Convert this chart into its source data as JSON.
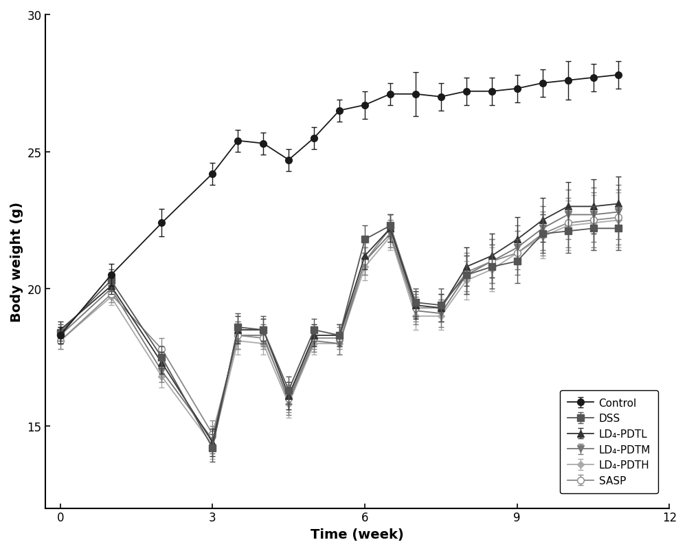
{
  "x": [
    0,
    1,
    2,
    3,
    3.5,
    4,
    4.5,
    5,
    5.5,
    6,
    6.5,
    7,
    7.5,
    8,
    8.5,
    9,
    9.5,
    10,
    10.5,
    11
  ],
  "series": {
    "Control": {
      "y": [
        18.3,
        20.5,
        22.4,
        24.2,
        25.4,
        25.3,
        24.7,
        25.5,
        26.5,
        26.7,
        27.1,
        27.1,
        27.0,
        27.2,
        27.2,
        27.3,
        27.5,
        27.6,
        27.7,
        27.8
      ],
      "yerr": [
        0.3,
        0.4,
        0.5,
        0.4,
        0.4,
        0.4,
        0.4,
        0.4,
        0.4,
        0.5,
        0.4,
        0.8,
        0.5,
        0.5,
        0.5,
        0.5,
        0.5,
        0.7,
        0.5,
        0.5
      ],
      "color": "#1a1a1a",
      "marker": "o",
      "markersize": 7,
      "zorder": 5,
      "linestyle": "-",
      "markerfacecolor": "#1a1a1a"
    },
    "DSS": {
      "y": [
        18.4,
        20.3,
        17.5,
        14.2,
        18.6,
        18.5,
        16.3,
        18.5,
        18.3,
        21.8,
        22.3,
        19.5,
        19.4,
        20.5,
        20.8,
        21.0,
        22.0,
        22.1,
        22.2,
        22.2
      ],
      "yerr": [
        0.3,
        0.4,
        0.4,
        0.5,
        0.5,
        0.5,
        0.5,
        0.4,
        0.4,
        0.5,
        0.4,
        0.5,
        0.6,
        0.7,
        0.8,
        0.8,
        0.7,
        0.8,
        0.8,
        0.8
      ],
      "color": "#555555",
      "marker": "s",
      "markersize": 7,
      "zorder": 4,
      "linestyle": "-",
      "markerfacecolor": "#555555"
    },
    "LD4-PDTL": {
      "y": [
        18.5,
        20.1,
        17.3,
        14.4,
        18.5,
        18.5,
        16.1,
        18.3,
        18.3,
        21.2,
        22.2,
        19.4,
        19.3,
        20.8,
        21.2,
        21.8,
        22.5,
        23.0,
        23.0,
        23.1
      ],
      "yerr": [
        0.3,
        0.3,
        0.4,
        0.5,
        0.5,
        0.4,
        0.5,
        0.4,
        0.4,
        0.5,
        0.5,
        0.5,
        0.5,
        0.7,
        0.8,
        0.8,
        0.8,
        0.9,
        1.0,
        1.0
      ],
      "color": "#333333",
      "marker": "^",
      "markersize": 7,
      "zorder": 3,
      "linestyle": "-",
      "markerfacecolor": "#333333"
    },
    "LD4-PDTM": {
      "y": [
        18.3,
        20.0,
        17.0,
        14.5,
        18.3,
        18.3,
        15.9,
        18.1,
        18.0,
        21.0,
        22.0,
        19.2,
        19.1,
        20.5,
        21.0,
        21.5,
        22.2,
        22.7,
        22.7,
        22.8
      ],
      "yerr": [
        0.3,
        0.3,
        0.4,
        0.5,
        0.5,
        0.4,
        0.5,
        0.4,
        0.4,
        0.5,
        0.5,
        0.5,
        0.5,
        0.7,
        0.8,
        0.8,
        0.8,
        0.9,
        1.0,
        1.0
      ],
      "color": "#777777",
      "marker": "v",
      "markersize": 7,
      "zorder": 2,
      "linestyle": "-",
      "markerfacecolor": "#777777"
    },
    "LD4-PDTH": {
      "y": [
        18.1,
        19.7,
        16.8,
        14.3,
        18.1,
        18.0,
        15.8,
        18.0,
        18.0,
        20.8,
        21.9,
        19.0,
        19.0,
        20.3,
        20.7,
        21.3,
        21.9,
        22.3,
        22.4,
        22.5
      ],
      "yerr": [
        0.3,
        0.3,
        0.4,
        0.5,
        0.5,
        0.4,
        0.5,
        0.4,
        0.4,
        0.5,
        0.5,
        0.5,
        0.5,
        0.7,
        0.8,
        0.8,
        0.8,
        0.9,
        1.0,
        1.0
      ],
      "color": "#aaaaaa",
      "marker": "D",
      "markersize": 5,
      "zorder": 1,
      "linestyle": "-",
      "markerfacecolor": "#aaaaaa"
    },
    "SASP": {
      "y": [
        18.1,
        19.8,
        17.8,
        14.7,
        18.3,
        18.2,
        16.0,
        18.2,
        18.2,
        21.0,
        22.2,
        19.3,
        19.3,
        20.6,
        21.0,
        21.3,
        22.0,
        22.4,
        22.5,
        22.6
      ],
      "yerr": [
        0.3,
        0.3,
        0.4,
        0.5,
        0.5,
        0.4,
        0.5,
        0.4,
        0.4,
        0.5,
        0.5,
        0.5,
        0.5,
        0.7,
        0.8,
        0.8,
        0.8,
        0.9,
        1.0,
        1.0
      ],
      "color": "#888888",
      "marker": "o",
      "markersize": 7,
      "zorder": 2,
      "linestyle": "-",
      "markerfacecolor": "white"
    }
  },
  "xlabel": "Time (week)",
  "ylabel": "Body weight (g)",
  "xlim": [
    -0.3,
    12
  ],
  "ylim": [
    12,
    30
  ],
  "xticks": [
    0,
    3,
    6,
    9,
    12
  ],
  "yticks": [
    15,
    20,
    25,
    30
  ],
  "legend_labels": [
    "Control",
    "DSS",
    "LD₄-PDTL",
    "LD₄-PDTM",
    "LD₄-PDTH",
    "SASP"
  ],
  "background_color": "#ffffff"
}
